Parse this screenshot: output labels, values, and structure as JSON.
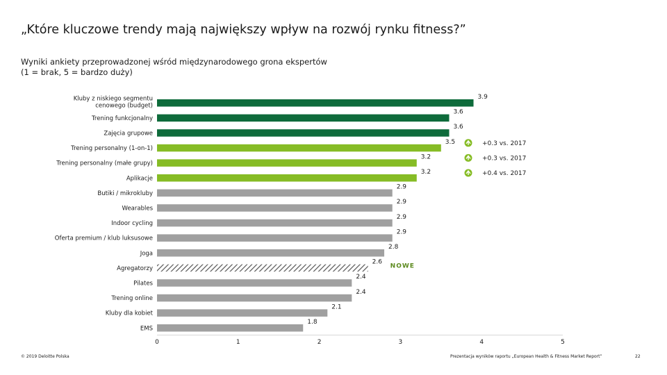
{
  "header": {
    "title": "„Które kluczowe trendy mają największy wpływ na rozwój rynku fitness?”",
    "subtitle_line1": "Wyniki ankiety przeprowadzonej wśród międzynarodowego grona ekspertów",
    "subtitle_line2": "(1 = brak, 5 = bardzo duży)"
  },
  "footer": {
    "copyright": "© 2019 Deloitte Polska",
    "source": "Prezentacja wyników raportu „European Health & Fitness Market Report”",
    "page_number": "22"
  },
  "colors": {
    "dark_green": "#0e6b3b",
    "light_green": "#86bc25",
    "gray": "#a0a0a0",
    "hatched": "#555555",
    "new_label": "#5c8a1e"
  },
  "chart_data": {
    "type": "bar",
    "orientation": "horizontal",
    "categories": [
      [
        "Kluby z niskiego segmentu",
        "cenowego (budget)"
      ],
      [
        "Trening funkcjonalny"
      ],
      [
        "Zajęcia grupowe"
      ],
      [
        "Trening personalny (1-on-1)"
      ],
      [
        "Trening personalny (małe grupy)"
      ],
      [
        "Aplikacje"
      ],
      [
        "Butiki / mikrokluby"
      ],
      [
        "Wearables"
      ],
      [
        "Indoor cycling"
      ],
      [
        "Oferta premium / klub luksusowe"
      ],
      [
        "Joga"
      ],
      [
        "Agregatorzy"
      ],
      [
        "Pilates"
      ],
      [
        "Trening online"
      ],
      [
        "Kluby dla kobiet"
      ],
      [
        "EMS"
      ]
    ],
    "values": [
      3.9,
      3.6,
      3.6,
      3.5,
      3.2,
      3.2,
      2.9,
      2.9,
      2.9,
      2.9,
      2.8,
      2.6,
      2.4,
      2.4,
      2.1,
      1.8
    ],
    "value_labels": [
      "3.9",
      "3.6",
      "3.6",
      "3.5",
      "3.2",
      "3.2",
      "2.9",
      "2.9",
      "2.9",
      "2.9",
      "2.8",
      "2.6",
      "2.4",
      "2.4",
      "2.1",
      "1.8"
    ],
    "color_groups": [
      "dark",
      "dark",
      "dark",
      "light",
      "light",
      "light",
      "gray",
      "gray",
      "gray",
      "gray",
      "gray",
      "hatched",
      "gray",
      "gray",
      "gray",
      "gray"
    ],
    "annotations": [
      {
        "index": 3,
        "text": "+0.3 vs. 2017",
        "icon": "up-arrow-badge-icon"
      },
      {
        "index": 4,
        "text": "+0.3 vs. 2017",
        "icon": "up-arrow-badge-icon"
      },
      {
        "index": 5,
        "text": "+0.4 vs. 2017",
        "icon": "up-arrow-badge-icon"
      },
      {
        "index": 11,
        "text": "NOWE"
      }
    ],
    "xlim": [
      0,
      5
    ],
    "xticks": [
      "0",
      "1",
      "2",
      "3",
      "4",
      "5"
    ],
    "grid": false,
    "legend": "none"
  }
}
